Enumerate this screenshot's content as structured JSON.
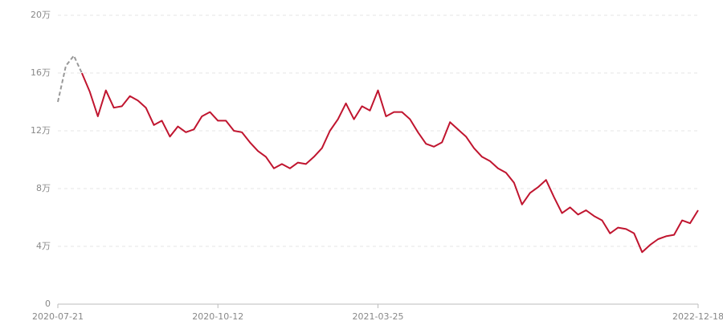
{
  "chart_data": {
    "type": "line",
    "categories": [
      "2020-07-21",
      null,
      null,
      null,
      null,
      null,
      null,
      null,
      null,
      null,
      null,
      null,
      null,
      null,
      null,
      null,
      null,
      null,
      null,
      null,
      "2020-10-12",
      null,
      null,
      null,
      null,
      null,
      null,
      null,
      null,
      null,
      null,
      null,
      null,
      null,
      null,
      null,
      null,
      null,
      null,
      null,
      "2021-03-25",
      null,
      null,
      null,
      null,
      null,
      null,
      null,
      null,
      null,
      null,
      null,
      null,
      null,
      null,
      null,
      null,
      null,
      null,
      null,
      null,
      null,
      null,
      null,
      null,
      null,
      null,
      null,
      null,
      null,
      null,
      null,
      null,
      null,
      null,
      null,
      null,
      null,
      null,
      null,
      "2022-12-18"
    ],
    "series": [
      {
        "color": "#999999",
        "dashed": true,
        "values": [
          14,
          16.5,
          17.2,
          16.0,
          null,
          null,
          null,
          null,
          null,
          null,
          null,
          null,
          null,
          null,
          null,
          null,
          null,
          null,
          null,
          null,
          null,
          null,
          null,
          null,
          null,
          null,
          null,
          null,
          null,
          null,
          null,
          null,
          null,
          null,
          null,
          null,
          null,
          null,
          null,
          null,
          null,
          null,
          null,
          null,
          null,
          null,
          null,
          null,
          null,
          null,
          null,
          null,
          null,
          null,
          null,
          null,
          null,
          null,
          null,
          null,
          null,
          null,
          null,
          null,
          null,
          null,
          null,
          null,
          null,
          null,
          null,
          null,
          null,
          null,
          null,
          null,
          null,
          null,
          null,
          null,
          null
        ]
      },
      {
        "color": "#c0152f",
        "dashed": false,
        "values": [
          null,
          null,
          null,
          16.0,
          14.7,
          13.0,
          14.8,
          13.6,
          13.7,
          14.4,
          14.1,
          13.6,
          12.4,
          12.7,
          11.6,
          12.3,
          11.9,
          12.1,
          13.0,
          13.3,
          12.7,
          12.7,
          12.0,
          11.9,
          11.2,
          10.6,
          10.2,
          9.4,
          9.7,
          9.4,
          9.8,
          9.7,
          10.2,
          10.8,
          12.0,
          12.8,
          13.9,
          12.8,
          13.7,
          13.4,
          14.8,
          13.0,
          13.3,
          13.3,
          12.8,
          11.9,
          11.1,
          10.9,
          11.2,
          12.6,
          12.1,
          11.6,
          10.8,
          10.2,
          9.9,
          9.4,
          9.1,
          8.4,
          6.9,
          7.7,
          8.1,
          8.6,
          7.4,
          6.3,
          6.7,
          6.2,
          6.5,
          6.1,
          5.8,
          4.9,
          5.3,
          5.2,
          4.9,
          3.6,
          4.1,
          4.5,
          4.7,
          4.8,
          5.8,
          5.6,
          6.5
        ]
      }
    ],
    "ylim": [
      0,
      20
    ],
    "yticks": [
      0,
      {
        "value": 4,
        "label": "4万"
      },
      {
        "value": 8,
        "label": "8万"
      },
      {
        "value": 12,
        "label": "12万"
      },
      {
        "value": 16,
        "label": "16万"
      },
      {
        "value": 20,
        "label": "20万"
      }
    ],
    "grid": true
  }
}
